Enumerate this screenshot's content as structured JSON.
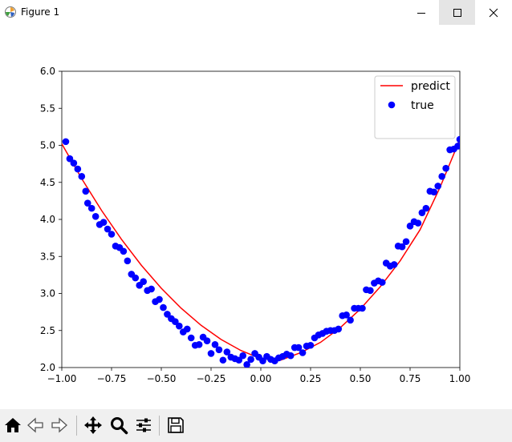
{
  "window": {
    "title": "Figure 1",
    "controls": [
      "minimize",
      "maximize",
      "close"
    ]
  },
  "toolbar": {
    "buttons": [
      {
        "name": "home-button",
        "icon": "home-icon"
      },
      {
        "name": "back-button",
        "icon": "arrow-left-icon"
      },
      {
        "name": "forward-button",
        "icon": "arrow-right-icon"
      },
      {
        "name": "pan-button",
        "icon": "move-icon"
      },
      {
        "name": "zoom-button",
        "icon": "magnifier-icon"
      },
      {
        "name": "configure-subplots-button",
        "icon": "sliders-icon"
      },
      {
        "name": "save-button",
        "icon": "floppy-disk-icon"
      }
    ]
  },
  "chart_data": {
    "type": "scatter",
    "title": "",
    "xlabel": "",
    "ylabel": "",
    "xlim": [
      -1.0,
      1.0
    ],
    "ylim": [
      2.0,
      6.0
    ],
    "xticks": [
      "−1.00",
      "−0.75",
      "−0.50",
      "−0.25",
      "0.00",
      "0.25",
      "0.50",
      "0.75",
      "1.00"
    ],
    "yticks": [
      "2.0",
      "2.5",
      "3.0",
      "3.5",
      "4.0",
      "4.5",
      "5.0",
      "5.5",
      "6.0"
    ],
    "grid": false,
    "legend": {
      "position": "top-right",
      "entries": [
        "predict",
        "true"
      ]
    },
    "colors": {
      "predict": "#ff0000",
      "true": "#0000ff"
    },
    "series": [
      {
        "name": "predict",
        "kind": "line",
        "x": [
          -1.0,
          -0.9,
          -0.8,
          -0.7,
          -0.6,
          -0.5,
          -0.4,
          -0.3,
          -0.2,
          -0.1,
          0.0,
          0.1,
          0.2,
          0.3,
          0.4,
          0.5,
          0.6,
          0.7,
          0.8,
          0.9,
          1.0
        ],
        "y": [
          5.02,
          4.55,
          4.12,
          3.73,
          3.38,
          3.07,
          2.8,
          2.57,
          2.38,
          2.23,
          2.12,
          2.1,
          2.2,
          2.34,
          2.54,
          2.79,
          3.09,
          3.44,
          3.86,
          4.43,
          5.08
        ]
      },
      {
        "name": "true",
        "kind": "scatter",
        "x": [
          -0.98,
          -0.96,
          -0.94,
          -0.92,
          -0.9,
          -0.88,
          -0.87,
          -0.85,
          -0.83,
          -0.81,
          -0.79,
          -0.77,
          -0.75,
          -0.73,
          -0.71,
          -0.69,
          -0.67,
          -0.65,
          -0.63,
          -0.61,
          -0.59,
          -0.57,
          -0.55,
          -0.53,
          -0.51,
          -0.49,
          -0.47,
          -0.45,
          -0.43,
          -0.41,
          -0.39,
          -0.37,
          -0.35,
          -0.33,
          -0.31,
          -0.29,
          -0.27,
          -0.25,
          -0.23,
          -0.21,
          -0.19,
          -0.17,
          -0.15,
          -0.13,
          -0.11,
          -0.09,
          -0.07,
          -0.05,
          -0.03,
          -0.01,
          0.01,
          0.03,
          0.05,
          0.07,
          0.09,
          0.11,
          0.13,
          0.15,
          0.17,
          0.19,
          0.21,
          0.23,
          0.25,
          0.27,
          0.29,
          0.31,
          0.33,
          0.35,
          0.37,
          0.39,
          0.41,
          0.43,
          0.45,
          0.47,
          0.49,
          0.51,
          0.53,
          0.55,
          0.57,
          0.59,
          0.61,
          0.63,
          0.65,
          0.67,
          0.69,
          0.71,
          0.73,
          0.75,
          0.77,
          0.79,
          0.81,
          0.83,
          0.85,
          0.87,
          0.89,
          0.91,
          0.93,
          0.95,
          0.97,
          0.99,
          1.0
        ],
        "y": [
          5.05,
          4.82,
          4.76,
          4.68,
          4.58,
          4.38,
          4.22,
          4.15,
          4.04,
          3.93,
          3.96,
          3.87,
          3.8,
          3.64,
          3.62,
          3.57,
          3.44,
          3.26,
          3.21,
          3.11,
          3.16,
          3.04,
          3.06,
          2.89,
          2.92,
          2.81,
          2.72,
          2.66,
          2.62,
          2.56,
          2.48,
          2.52,
          2.4,
          2.3,
          2.31,
          2.41,
          2.36,
          2.19,
          2.31,
          2.24,
          2.1,
          2.21,
          2.14,
          2.12,
          2.1,
          2.16,
          2.04,
          2.11,
          2.19,
          2.14,
          2.09,
          2.15,
          2.11,
          2.09,
          2.13,
          2.15,
          2.18,
          2.16,
          2.27,
          2.27,
          2.2,
          2.29,
          2.3,
          2.4,
          2.44,
          2.46,
          2.49,
          2.5,
          2.5,
          2.52,
          2.7,
          2.71,
          2.64,
          2.8,
          2.8,
          2.8,
          3.05,
          3.04,
          3.14,
          3.17,
          3.15,
          3.41,
          3.37,
          3.39,
          3.64,
          3.63,
          3.7,
          3.91,
          3.97,
          3.95,
          4.09,
          4.15,
          4.38,
          4.37,
          4.45,
          4.58,
          4.69,
          4.94,
          4.95,
          4.99,
          5.08
        ]
      }
    ]
  }
}
